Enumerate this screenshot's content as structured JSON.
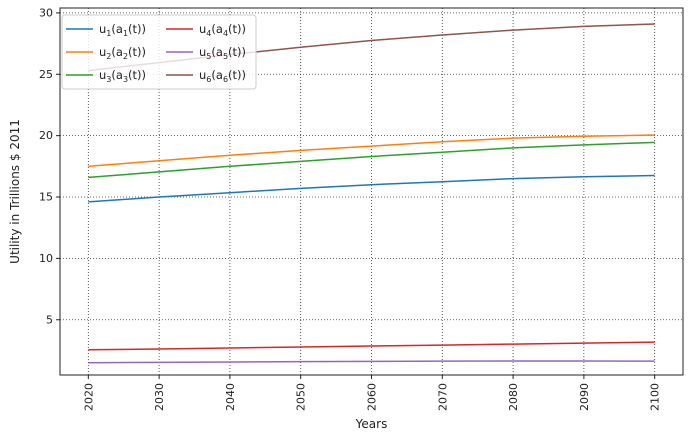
{
  "chart_data": {
    "type": "line",
    "title": "",
    "xlabel": "Years",
    "ylabel": "Utility in Trillions $ 2011",
    "x": [
      2020,
      2030,
      2040,
      2050,
      2060,
      2070,
      2080,
      2090,
      2100
    ],
    "xlim": [
      2016,
      2104
    ],
    "ylim": [
      0.5,
      30.4
    ],
    "xticks": [
      2020,
      2030,
      2040,
      2050,
      2060,
      2070,
      2080,
      2090,
      2100
    ],
    "yticks": [
      5,
      10,
      15,
      20,
      25,
      30
    ],
    "grid": true,
    "grid_style": "dotted",
    "legend": {
      "placement": "top-left",
      "columns": 2
    },
    "series": [
      {
        "name": "u1(a1(t))",
        "label_parts": [
          "u",
          "1",
          "(a",
          "1",
          "(t))"
        ],
        "color": "#1f77b4",
        "values": [
          14.6,
          15.0,
          15.35,
          15.7,
          16.0,
          16.25,
          16.5,
          16.65,
          16.75
        ]
      },
      {
        "name": "u2(a2(t))",
        "label_parts": [
          "u",
          "2",
          "(a",
          "2",
          "(t))"
        ],
        "color": "#ff7f0e",
        "values": [
          17.5,
          17.95,
          18.4,
          18.8,
          19.15,
          19.5,
          19.8,
          19.95,
          20.05
        ]
      },
      {
        "name": "u3(a3(t))",
        "label_parts": [
          "u",
          "3",
          "(a",
          "3",
          "(t))"
        ],
        "color": "#2ca02c",
        "values": [
          16.6,
          17.05,
          17.5,
          17.9,
          18.3,
          18.65,
          19.0,
          19.25,
          19.45
        ]
      },
      {
        "name": "u4(a4(t))",
        "label_parts": [
          "u",
          "4",
          "(a",
          "4",
          "(t))"
        ],
        "color": "#d62728",
        "values": [
          2.55,
          2.62,
          2.7,
          2.78,
          2.86,
          2.94,
          3.02,
          3.1,
          3.18
        ]
      },
      {
        "name": "u5(a5(t))",
        "label_parts": [
          "u",
          "5",
          "(a",
          "5",
          "(t))"
        ],
        "color": "#9467bd",
        "values": [
          1.5,
          1.53,
          1.56,
          1.59,
          1.61,
          1.63,
          1.64,
          1.64,
          1.63
        ]
      },
      {
        "name": "u6(a6(t))",
        "label_parts": [
          "u",
          "6",
          "(a",
          "6",
          "(t))"
        ],
        "color": "#8c564b",
        "values": [
          25.3,
          25.95,
          26.6,
          27.2,
          27.75,
          28.2,
          28.6,
          28.9,
          29.1
        ]
      }
    ]
  }
}
